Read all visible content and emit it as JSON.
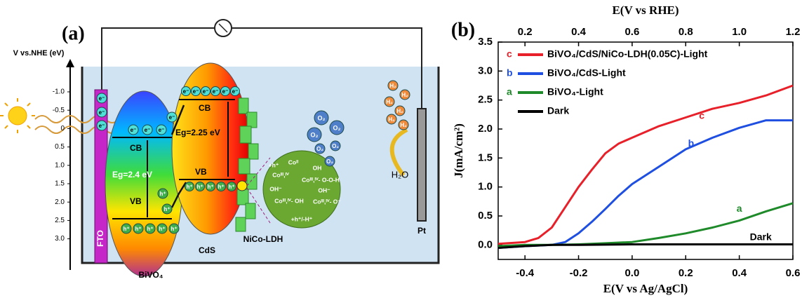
{
  "panel_a": {
    "label": "(a)",
    "axis": {
      "title": "V vs.NHE (eV)",
      "ticks": [
        "-1.0",
        "-0.5",
        "0",
        "0.5",
        "1.0",
        "1.5",
        "2.0",
        "2.5",
        "3.0"
      ]
    },
    "fto": "FTO",
    "bivo4": {
      "name": "BiVO₄",
      "cb": "CB",
      "vb": "VB",
      "gap": "Eg=2.4 eV",
      "electrons": [
        "e⁻",
        "e⁻",
        "e⁻",
        "e⁻",
        "e⁻",
        "e⁻",
        "e⁻"
      ],
      "holes": [
        "h⁺",
        "h⁺",
        "h⁺",
        "h⁺",
        "h⁺",
        "h⁺",
        "h⁺"
      ]
    },
    "cds": {
      "name": "CdS",
      "cb": "CB",
      "vb": "VB",
      "gap": "Eg=2.25 eV",
      "electrons": [
        "e⁻",
        "e⁻",
        "e⁻",
        "e⁻",
        "e⁻",
        "e⁻"
      ],
      "holes": [
        "h⁺",
        "h⁺",
        "h⁺",
        "h⁺",
        "h⁺"
      ]
    },
    "cocatalyst": "NiCo-LDH",
    "cycle": [
      "+h⁺",
      "Coᴵᴵ",
      "OH",
      "Coᴵᴵᴵ,ᴵⱽ",
      "Coᴵᴵᴵ,ᴵⱽ- O-O-H",
      "OH⁻",
      "Coᴵᴵᴵ,ᴵⱽ- OH",
      "OH⁻",
      "Coᴵᴵᴵ,ᴵⱽ- O⁻",
      "+h⁺/-H⁺"
    ],
    "oxygen": [
      "O₂",
      "O₂",
      "O₂",
      "O₂",
      "O₂",
      "O₂"
    ],
    "hydrogen": [
      "H₂",
      "H₂",
      "H₂",
      "H₂",
      "H₂",
      "H₂"
    ],
    "water": "H₂O",
    "counter_electrode": "Pt"
  },
  "chart_data": {
    "type": "line",
    "label": "(b)",
    "xlabel": "E(V vs Ag/AgCl)",
    "ylabel": "J(mA/cm²)",
    "x2label": "E(V vs RHE)",
    "xlim": [
      -0.5,
      0.6
    ],
    "xticks": [
      -0.4,
      -0.2,
      {
        "value": 0,
        "label": "0.0"
      },
      0.2,
      0.4,
      0.6
    ],
    "x2lim": [
      0.1,
      1.2
    ],
    "x2ticks": [
      0.2,
      0.4,
      0.6,
      0.8,
      {
        "value": 1,
        "label": "1.0"
      },
      1.2
    ],
    "ylim": [
      -0.25,
      3.5
    ],
    "yticks": [
      {
        "value": 0,
        "label": "0.0"
      },
      0.5,
      {
        "value": 1,
        "label": "1.0"
      },
      1.5,
      {
        "value": 2,
        "label": "2.0"
      },
      2.5,
      {
        "value": 3,
        "label": "3.0"
      },
      3.5
    ],
    "grid": false,
    "legend": "upper left",
    "series": [
      {
        "name": "BiVO₄/CdS/NiCo-LDH(0.05C)-Light",
        "label": "c",
        "color": "#e8202a",
        "x": [
          -0.5,
          -0.4,
          -0.35,
          -0.3,
          -0.25,
          -0.2,
          -0.15,
          -0.1,
          -0.05,
          0,
          0.1,
          0.2,
          0.3,
          0.4,
          0.5,
          0.6
        ],
        "values": [
          0.02,
          0.05,
          0.12,
          0.3,
          0.65,
          1.0,
          1.3,
          1.58,
          1.75,
          1.85,
          2.05,
          2.2,
          2.35,
          2.45,
          2.58,
          2.75
        ]
      },
      {
        "name": "BiVO₄/CdS-Light",
        "label": "b",
        "color": "#1f4fe0",
        "x": [
          -0.5,
          -0.4,
          -0.3,
          -0.25,
          -0.2,
          -0.15,
          -0.1,
          -0.05,
          0,
          0.1,
          0.2,
          0.3,
          0.4,
          0.5,
          0.6
        ],
        "values": [
          -0.05,
          -0.02,
          0,
          0.05,
          0.2,
          0.4,
          0.62,
          0.85,
          1.05,
          1.35,
          1.65,
          1.85,
          2.02,
          2.15,
          2.15
        ]
      },
      {
        "name": "BiVO₄-Light",
        "label": "a",
        "color": "#1f8a2a",
        "x": [
          -0.5,
          -0.4,
          -0.3,
          -0.2,
          -0.1,
          0,
          0.1,
          0.2,
          0.3,
          0.4,
          0.5,
          0.6
        ],
        "values": [
          -0.02,
          0,
          0,
          0.01,
          0.03,
          0.05,
          0.12,
          0.2,
          0.3,
          0.42,
          0.58,
          0.72
        ]
      },
      {
        "name": "Dark",
        "color": "#000000",
        "x": [
          -0.5,
          -0.4,
          -0.3,
          -0.2,
          0,
          0.2,
          0.4,
          0.6
        ],
        "values": [
          -0.05,
          -0.02,
          0,
          0,
          0.01,
          0.01,
          0.01,
          0.01
        ]
      }
    ],
    "annotations": [
      {
        "text": "c",
        "x": 0.26,
        "y": 2.22,
        "color": "#e8202a"
      },
      {
        "text": "b",
        "x": 0.22,
        "y": 1.74,
        "color": "#1f4fe0"
      },
      {
        "text": "a",
        "x": 0.4,
        "y": 0.62,
        "color": "#1f8a2a"
      },
      {
        "text": "Dark",
        "x": 0.48,
        "y": 0.13,
        "color": "#000000"
      }
    ]
  }
}
